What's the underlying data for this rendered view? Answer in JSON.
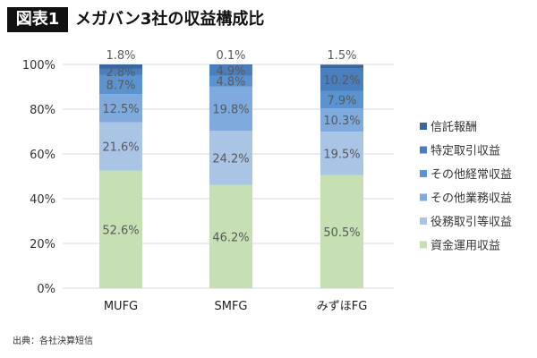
{
  "header": {
    "badge": "図表1",
    "title": "メガバン3社の収益構成比"
  },
  "footer": {
    "source": "出典：各社決算短信"
  },
  "chart_data": {
    "type": "bar",
    "stacked": true,
    "percent": true,
    "categories": [
      "MUFG",
      "SMFG",
      "みずほFG"
    ],
    "ylim": [
      0,
      100
    ],
    "yticks": [
      "0%",
      "20%",
      "40%",
      "60%",
      "80%",
      "100%"
    ],
    "grid": true,
    "legend_position": "right",
    "series": [
      {
        "name": "資金運用収益",
        "color": "#c6e0b4",
        "values": [
          52.6,
          46.2,
          50.5
        ],
        "labels": [
          "52.6%",
          "46.2%",
          "50.5%"
        ]
      },
      {
        "name": "役務取引等収益",
        "color": "#aac4e6",
        "values": [
          21.6,
          24.2,
          19.5
        ],
        "labels": [
          "21.6%",
          "24.2%",
          "19.5%"
        ]
      },
      {
        "name": "その他業務収益",
        "color": "#7eaadd",
        "values": [
          12.5,
          19.8,
          10.3
        ],
        "labels": [
          "12.5%",
          "19.8%",
          "10.3%"
        ]
      },
      {
        "name": "その他経常収益",
        "color": "#5b93d0",
        "values": [
          8.7,
          4.8,
          7.9
        ],
        "labels": [
          "8.7%",
          "4.8%",
          "7.9%"
        ]
      },
      {
        "name": "特定取引収益",
        "color": "#4a7fbf",
        "values": [
          2.8,
          4.9,
          10.2
        ],
        "labels": [
          "2.8%",
          "4.9%",
          "10.2%"
        ]
      },
      {
        "name": "信託報酬",
        "color": "#3a669e",
        "values": [
          1.8,
          0.1,
          1.5
        ],
        "labels": [
          "1.8%",
          "0.1%",
          "1.5%"
        ]
      }
    ]
  }
}
